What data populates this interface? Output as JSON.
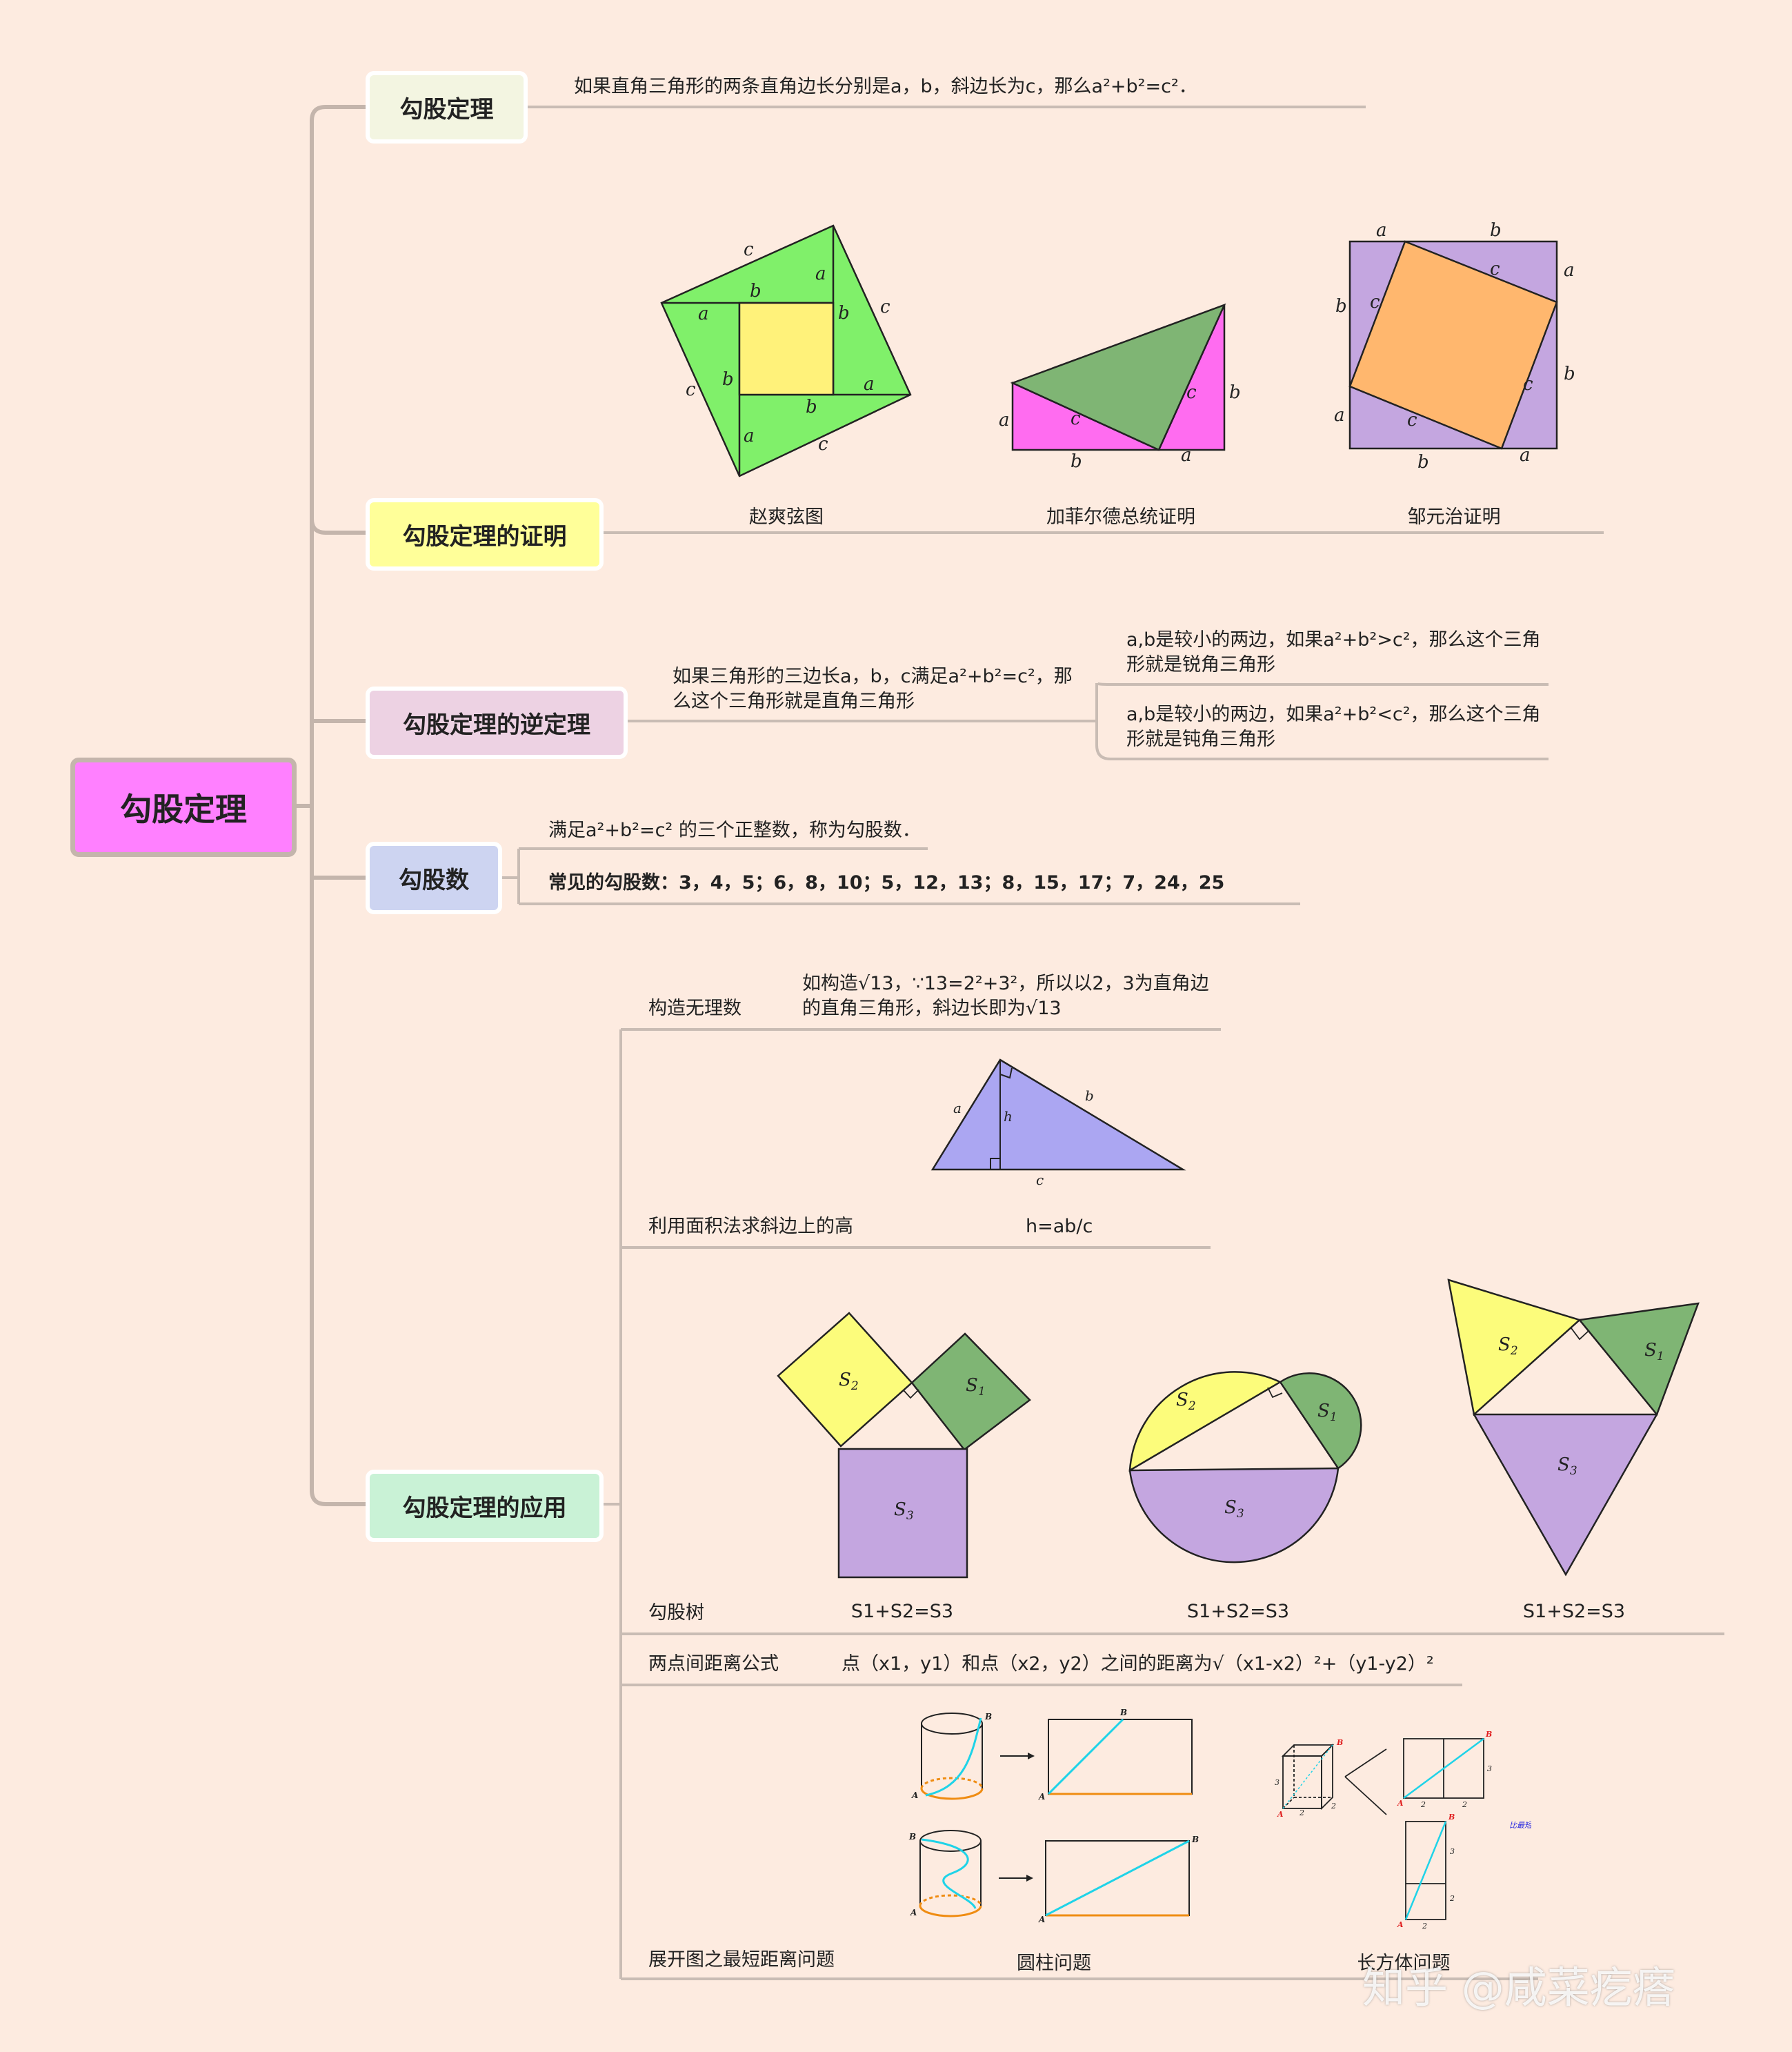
{
  "root": {
    "label": "勾股定理"
  },
  "branches": {
    "theorem": {
      "label": "勾股定理",
      "text": "如果直角三角形的两条直角边长分别是a，b，斜边长为c，那么a²+b²=c²．"
    },
    "proof": {
      "label": "勾股定理的证明",
      "captions": [
        "赵爽弦图",
        "加菲尔德总统证明",
        "邹元治证明"
      ]
    },
    "converse": {
      "label": "勾股定理的逆定理",
      "text": "如果三角形的三边长a，b，c满足a²+b²=c²，那么这个三角形就是直角三角形",
      "sub": [
        "a,b是较小的两边，如果a²+b²>c²，那么这个三角形就是锐角三角形",
        "a,b是较小的两边，如果a²+b²<c²，那么这个三角形就是钝角三角形"
      ]
    },
    "triples": {
      "label": "勾股数",
      "definition": "满足a²+b²=c² 的三个正整数，称为勾股数．",
      "common": "常见的勾股数：3，4，5；6，8，10；5，12，13；8，15，17；7，24，25"
    },
    "application": {
      "label": "勾股定理的应用",
      "irrational": {
        "label": "构造无理数",
        "text": "如构造√13，∵13=2²+3²，所以以2，3为直角边的直角三角形，斜边长即为√13"
      },
      "altitude": {
        "label": "利用面积法求斜边上的高",
        "formula": "h=ab/c"
      },
      "tree": {
        "label": "勾股树",
        "formulas": [
          "S1+S2=S3",
          "S1+S2=S3",
          "S1+S2=S3"
        ]
      },
      "distance": {
        "label": "两点间距离公式",
        "text": "点（x1，y1）和点（x2，y2）之间的距离为√（x1-x2）²+（y1-y2）²"
      },
      "unfold": {
        "label": "展开图之最短距离问题",
        "cylinder": "圆柱问题",
        "cuboid": "长方体问题"
      }
    }
  },
  "figure_labels": {
    "a": "a",
    "b": "b",
    "c": "c",
    "h": "h",
    "A": "A",
    "B": "B",
    "S1": "S",
    "S2": "S",
    "S3": "S",
    "sub1": "1",
    "sub2": "2",
    "sub3": "3",
    "n2": "2",
    "n3": "3",
    "compare": "比最短"
  },
  "watermark": "知乎 @咸菜疙瘩",
  "colors": {
    "background": "#fdebe0",
    "root_fill": "#ff80ff",
    "theorem_fill": "#f3f5e1",
    "proof_fill": "#ffff99",
    "converse_fill": "#edd2e3",
    "triples_fill": "#cdd4f1",
    "application_fill": "#c9f2d6",
    "line": "#c8bab2"
  }
}
